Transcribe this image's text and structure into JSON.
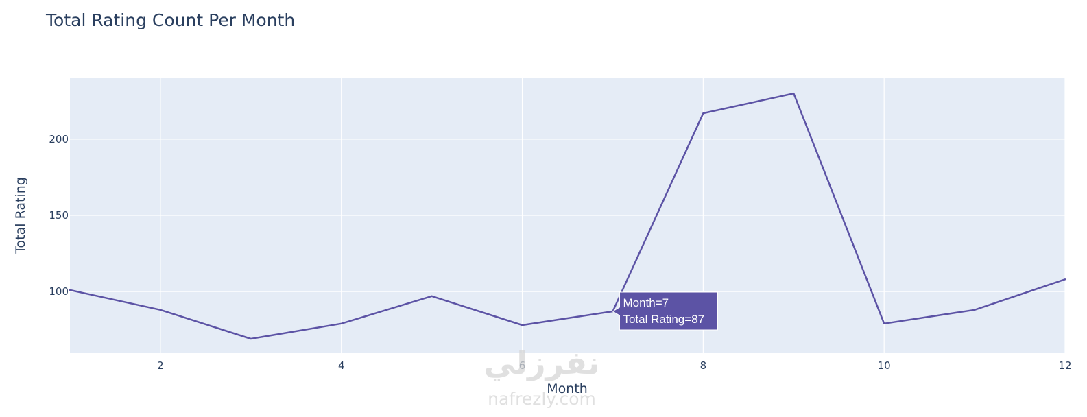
{
  "chart_data": {
    "type": "line",
    "title": "Total Rating Count Per Month",
    "xlabel": "Month",
    "ylabel": "Total Rating",
    "x": [
      1,
      2,
      3,
      4,
      5,
      6,
      7,
      8,
      9,
      10,
      11,
      12
    ],
    "series": [
      {
        "values": [
          101,
          88,
          69,
          79,
          97,
          78,
          87,
          217,
          230,
          79,
          88,
          108
        ]
      }
    ],
    "xlim": [
      1,
      12
    ],
    "ylim": [
      60,
      240
    ],
    "xticks": [
      2,
      4,
      6,
      8,
      10,
      12
    ],
    "yticks": [
      100,
      150,
      200
    ],
    "grid": true,
    "line_color": "#5c53a5",
    "plot_bg": "#e5ecf6",
    "hover": {
      "x": 7,
      "y": 87,
      "line1": "Month=7",
      "line2": "Total Rating=87"
    }
  },
  "watermark": {
    "arabic": "نفرزلي",
    "latin": "nafrezly.com"
  }
}
